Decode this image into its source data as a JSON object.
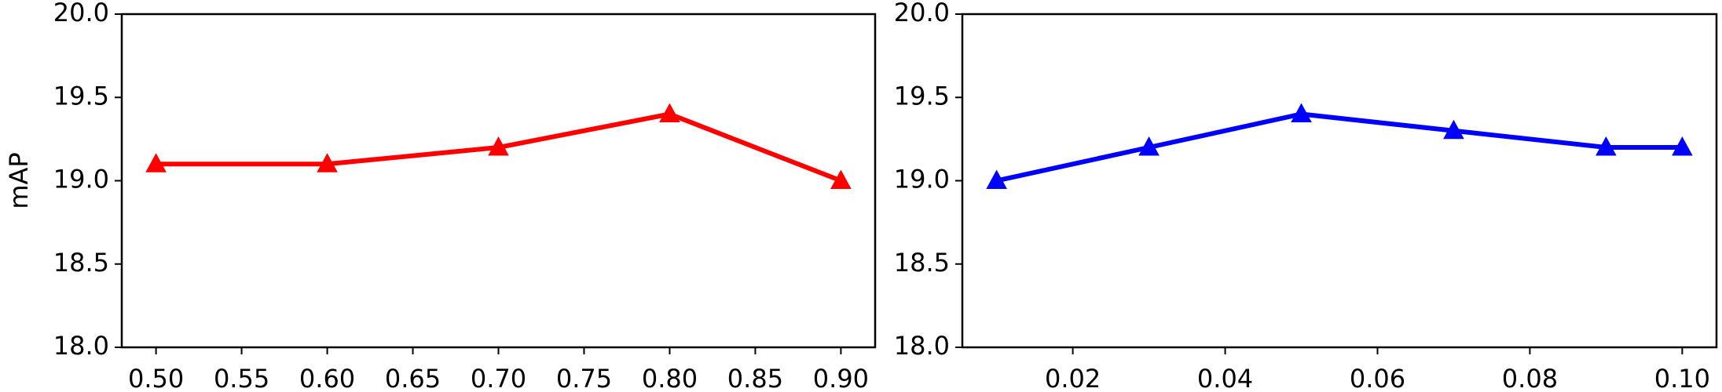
{
  "chart_data": [
    {
      "type": "line",
      "ylabel": "mAP",
      "x": [
        0.5,
        0.6,
        0.7,
        0.8,
        0.9
      ],
      "series": [
        {
          "color": "#ff0000",
          "marker": "triangle",
          "values": [
            19.1,
            19.1,
            19.2,
            19.4,
            19.0
          ]
        }
      ],
      "xlim": [
        0.48,
        0.92
      ],
      "xticks": [
        {
          "value": 0.5,
          "label": "0.50"
        },
        {
          "value": 0.55,
          "label": "0.55"
        },
        {
          "value": 0.6,
          "label": "0.60"
        },
        {
          "value": 0.65,
          "label": "0.65"
        },
        {
          "value": 0.7,
          "label": "0.70"
        },
        {
          "value": 0.75,
          "label": "0.75"
        },
        {
          "value": 0.8,
          "label": "0.80"
        },
        {
          "value": 0.85,
          "label": "0.85"
        },
        {
          "value": 0.9,
          "label": "0.90"
        }
      ],
      "ylim": [
        18,
        20
      ],
      "yticks": [
        {
          "value": 18,
          "label": "18.0"
        },
        {
          "value": 18.5,
          "label": "18.5"
        },
        {
          "value": 19,
          "label": "19.0"
        },
        {
          "value": 19.5,
          "label": "19.5"
        },
        {
          "value": 20,
          "label": "20.0"
        }
      ]
    },
    {
      "type": "line",
      "x": [
        0.01,
        0.03,
        0.05,
        0.07,
        0.09,
        0.1
      ],
      "series": [
        {
          "color": "#0000ff",
          "marker": "triangle",
          "values": [
            19.0,
            19.2,
            19.4,
            19.3,
            19.2,
            19.2
          ]
        }
      ],
      "xlim": [
        0.0055,
        0.1045
      ],
      "xticks": [
        {
          "value": 0.02,
          "label": "0.02"
        },
        {
          "value": 0.04,
          "label": "0.04"
        },
        {
          "value": 0.06,
          "label": "0.06"
        },
        {
          "value": 0.08,
          "label": "0.08"
        },
        {
          "value": 0.1,
          "label": "0.10"
        }
      ],
      "ylim": [
        18,
        20
      ],
      "yticks": [
        {
          "value": 18,
          "label": "18.0"
        },
        {
          "value": 18.5,
          "label": "18.5"
        },
        {
          "value": 19,
          "label": "19.0"
        },
        {
          "value": 19.5,
          "label": "19.5"
        },
        {
          "value": 20,
          "label": "20.0"
        }
      ]
    }
  ]
}
